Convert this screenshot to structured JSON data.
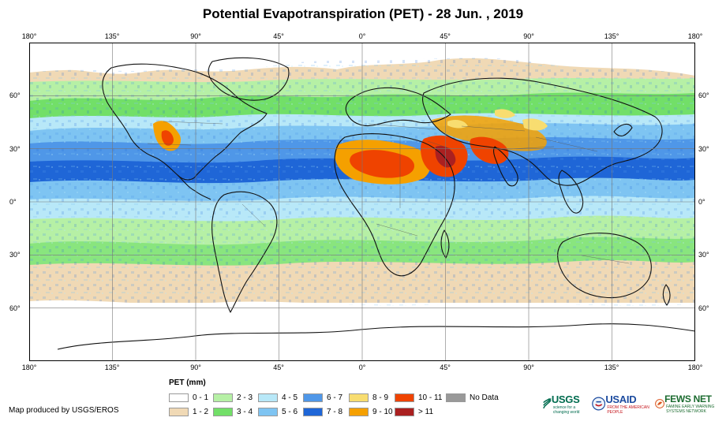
{
  "title": "Potential Evapotranspiration (PET) - 28 Jun. , 2019",
  "longitude_labels": [
    "180°",
    "135°",
    "90°",
    "45°",
    "0°",
    "45°",
    "90°",
    "135°",
    "180°"
  ],
  "latitude_labels": [
    "60°",
    "30°",
    "0°",
    "30°",
    "60°"
  ],
  "legend": {
    "title": "PET (mm)",
    "items": [
      {
        "label": "0 - 1",
        "color": "#ffffff"
      },
      {
        "label": "1 - 2",
        "color": "#f0d9b5"
      },
      {
        "label": "2 - 3",
        "color": "#b6f0a5"
      },
      {
        "label": "3 - 4",
        "color": "#72df68"
      },
      {
        "label": "4 - 5",
        "color": "#b8e8f8"
      },
      {
        "label": "5 - 6",
        "color": "#7ec4f2"
      },
      {
        "label": "6 - 7",
        "color": "#4f97e8"
      },
      {
        "label": "7 - 8",
        "color": "#1f66d7"
      },
      {
        "label": "8 - 9",
        "color": "#f8dd70"
      },
      {
        "label": "9 - 10",
        "color": "#f5a000"
      },
      {
        "label": "10 - 11",
        "color": "#ef4300"
      },
      {
        "label": "> 11",
        "color": "#aa2020"
      },
      {
        "label": "No Data",
        "color": "#999999"
      }
    ]
  },
  "credit": "Map produced by USGS/EROS",
  "logos": {
    "usgs": "USGS",
    "usgs_tagline": "science for a changing world",
    "usaid": "USAID",
    "usaid_tagline": "FROM THE AMERICAN PEOPLE",
    "fews": "FEWS NET",
    "fews_tagline": "FAMINE EARLY WARNING SYSTEMS NETWORK"
  }
}
